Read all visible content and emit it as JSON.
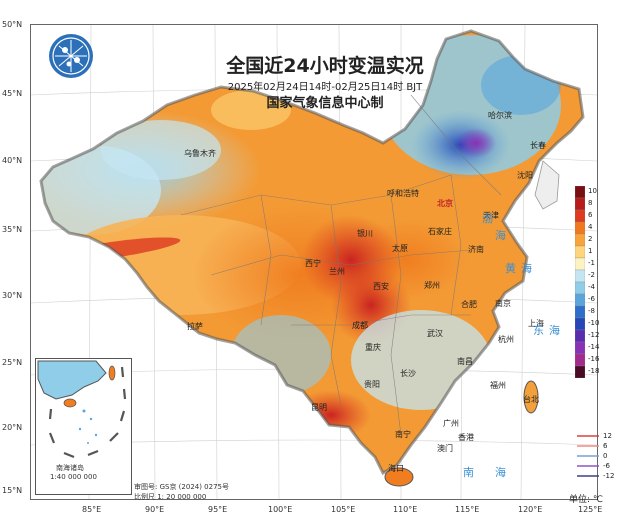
{
  "title": "全国近24小时变温实况",
  "subtitle": "2025年02月24日14时-02月25日14时 BJT",
  "agency": "国家气象信息中心制",
  "lat_labels": [
    "50°N",
    "45°N",
    "40°N",
    "35°N",
    "30°N",
    "25°N",
    "20°N",
    "15°N"
  ],
  "lon_labels": [
    "85°E",
    "90°E",
    "95°E",
    "100°E",
    "105°E",
    "110°E",
    "115°E",
    "120°E",
    "125°E"
  ],
  "cities": [
    "哈尔滨",
    "长春",
    "沈阳",
    "乌鲁木齐",
    "呼和浩特",
    "北京",
    "天津",
    "石家庄",
    "太原",
    "银川",
    "济南",
    "西宁",
    "兰州",
    "郑州",
    "西安",
    "合肥",
    "南京",
    "上海",
    "武汉",
    "杭州",
    "成都",
    "重庆",
    "南昌",
    "拉萨",
    "长沙",
    "贵阳",
    "福州",
    "昆明",
    "台北",
    "南宁",
    "广州",
    "香港",
    "澳门",
    "海口"
  ],
  "seas": [
    "渤",
    "海",
    "黄",
    "海",
    "东",
    "海",
    "南",
    "海"
  ],
  "colorbar_labels": [
    "10",
    "8",
    "6",
    "4",
    "2",
    "1",
    "-1",
    "-2",
    "-4",
    "-6",
    "-8",
    "-10",
    "-12",
    "-14",
    "-16",
    "-18"
  ],
  "colorbar_colors": [
    "#7a0f12",
    "#b61c1c",
    "#dd3a20",
    "#f0781e",
    "#f9a43a",
    "#fdd57c",
    "#fbf3c3",
    "#c4e6f2",
    "#8fcde8",
    "#5aa6dc",
    "#2f6fcc",
    "#2647b7",
    "#5a2dae",
    "#8a32b6",
    "#a22c8e",
    "#4a0b24"
  ],
  "legend_lines": [
    {
      "label": "12",
      "color": "#d94040"
    },
    {
      "label": "6",
      "color": "#f08a80"
    },
    {
      "label": "0",
      "color": "#7a9ed8"
    },
    {
      "label": "-6",
      "color": "#8f55c8"
    },
    {
      "label": "-12",
      "color": "#404080"
    }
  ],
  "inset_title": "南海诸岛",
  "inset_scale": "1:40 000 000",
  "approval": "审图号: GS京 (2024) 0275号",
  "scale": "比例尺  1: 20 000 000",
  "unit": "单位: ℃"
}
